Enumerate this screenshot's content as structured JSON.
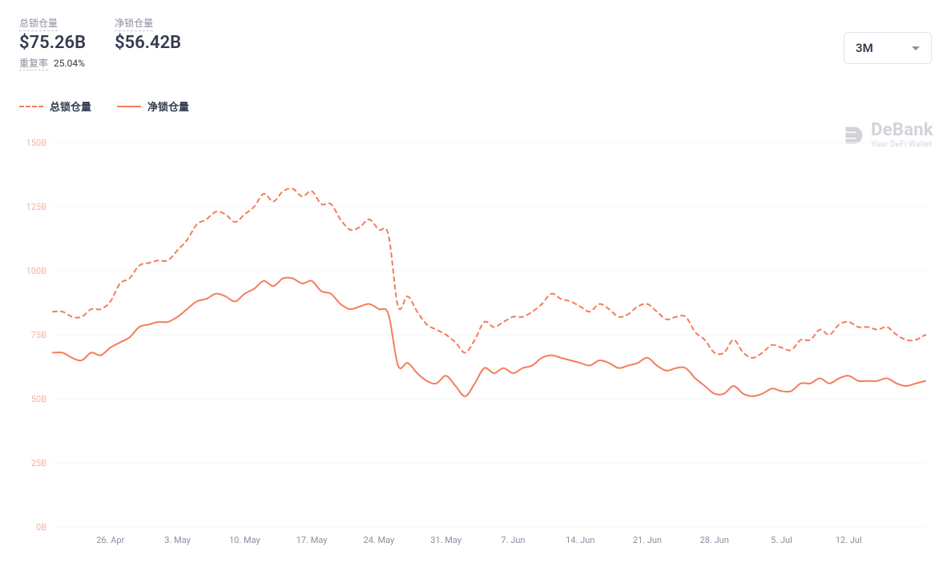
{
  "header": {
    "total_locked_label": "总锁仓量",
    "total_locked_value": "$75.26B",
    "net_locked_label": "净锁仓量",
    "net_locked_value": "$56.42B",
    "repeat_rate_label": "重复率",
    "repeat_rate_value": "25.04%"
  },
  "range_selector": {
    "selected": "3M"
  },
  "legend": {
    "series_a": "总锁仓量",
    "series_b": "净锁仓量"
  },
  "watermark": {
    "brand": "DeBank",
    "tagline": "Your DeFi Wallet",
    "color": "#c9ccd3"
  },
  "chart": {
    "type": "line",
    "background_color": "#ffffff",
    "line_colors": {
      "total": "#f47d5a",
      "net": "#f47d5a"
    },
    "line_styles": {
      "total": "dashed",
      "net": "solid"
    },
    "line_width": 2,
    "dash_pattern": "5,5",
    "y_axis": {
      "min": 0,
      "max": 150,
      "unit_suffix": "B",
      "ticks": [
        0,
        25,
        50,
        75,
        100,
        125,
        150
      ],
      "label_color": "#f4b49f",
      "grid_color": "#f3f4f6",
      "grid_on": true
    },
    "x_axis": {
      "ticks": [
        "26. Apr",
        "3. May",
        "10. May",
        "17. May",
        "24. May",
        "31. May",
        "7. Jun",
        "14. Jun",
        "21. Jun",
        "28. Jun",
        "5. Jul",
        "12. Jul"
      ],
      "label_color": "#8a8f9e"
    },
    "x_count": 92,
    "series": {
      "total": [
        84,
        84,
        82,
        82,
        85,
        85,
        88,
        95,
        97,
        102,
        103,
        104,
        104,
        108,
        112,
        118,
        120,
        123,
        122,
        119,
        122,
        125,
        130,
        127,
        131,
        132,
        129,
        131,
        126,
        126,
        120,
        116,
        117,
        120,
        116,
        114,
        86,
        90,
        84,
        79,
        77,
        75,
        72,
        68,
        73,
        80,
        78,
        80,
        82,
        82,
        84,
        87,
        91,
        89,
        88,
        86,
        84,
        87,
        85,
        82,
        83,
        86,
        87,
        84,
        81,
        82,
        82,
        76,
        73,
        68,
        68,
        73,
        68,
        66,
        68,
        71,
        70,
        69,
        73,
        73,
        77,
        75,
        79,
        80,
        78,
        78,
        77,
        78,
        75,
        73,
        73,
        75
      ],
      "net": [
        68,
        68,
        66,
        65,
        68,
        67,
        70,
        72,
        74,
        78,
        79,
        80,
        80,
        82,
        85,
        88,
        89,
        91,
        90,
        88,
        91,
        93,
        96,
        94,
        97,
        97,
        95,
        96,
        92,
        91,
        87,
        85,
        86,
        87,
        85,
        83,
        63,
        64,
        60,
        57,
        56,
        59,
        55,
        51,
        56,
        62,
        60,
        62,
        60,
        62,
        63,
        66,
        67,
        66,
        65,
        64,
        63,
        65,
        64,
        62,
        63,
        64,
        66,
        63,
        61,
        62,
        62,
        58,
        55,
        52,
        52,
        55,
        52,
        51,
        52,
        54,
        53,
        53,
        56,
        56,
        58,
        56,
        58,
        59,
        57,
        57,
        57,
        58,
        56,
        55,
        56,
        57
      ]
    }
  }
}
